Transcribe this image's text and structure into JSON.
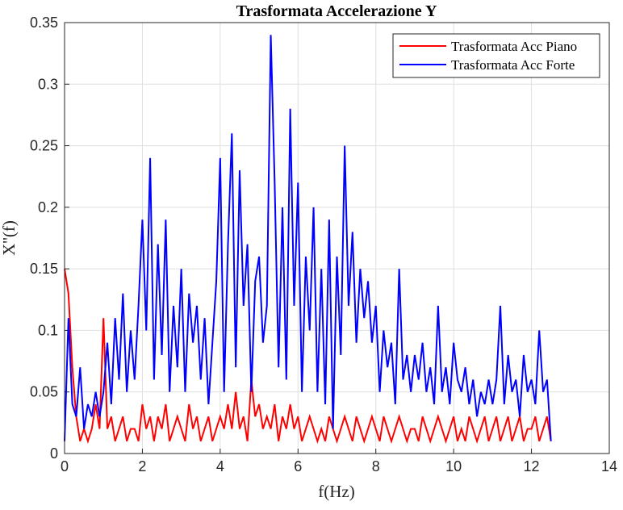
{
  "chart_data": {
    "type": "line",
    "title": "Trasformata Accelerazione Y",
    "x_label": "f(Hz)",
    "y_label": "X''(f)",
    "x": [
      0,
      0.1,
      0.2,
      0.3,
      0.4,
      0.5,
      0.6,
      0.7,
      0.8,
      0.9,
      1,
      1.1,
      1.2,
      1.3,
      1.4,
      1.5,
      1.6,
      1.7,
      1.8,
      1.9,
      2,
      2.1,
      2.2,
      2.3,
      2.4,
      2.5,
      2.6,
      2.7,
      2.8,
      2.9,
      3,
      3.1,
      3.2,
      3.3,
      3.4,
      3.5,
      3.6,
      3.7,
      3.8,
      3.9,
      4,
      4.1,
      4.2,
      4.3,
      4.4,
      4.5,
      4.6,
      4.7,
      4.8,
      4.9,
      5,
      5.1,
      5.2,
      5.3,
      5.4,
      5.5,
      5.6,
      5.7,
      5.8,
      5.9,
      6,
      6.1,
      6.2,
      6.3,
      6.4,
      6.5,
      6.6,
      6.7,
      6.8,
      6.9,
      7,
      7.1,
      7.2,
      7.3,
      7.4,
      7.5,
      7.6,
      7.7,
      7.8,
      7.9,
      8,
      8.1,
      8.2,
      8.3,
      8.4,
      8.5,
      8.6,
      8.7,
      8.8,
      8.9,
      9,
      9.1,
      9.2,
      9.3,
      9.4,
      9.5,
      9.6,
      9.7,
      9.8,
      9.9,
      10,
      10.1,
      10.2,
      10.3,
      10.4,
      10.5,
      10.6,
      10.7,
      10.8,
      10.9,
      11,
      11.1,
      11.2,
      11.3,
      11.4,
      11.5,
      11.6,
      11.7,
      11.8,
      11.9,
      12,
      12.1,
      12.2,
      12.3,
      12.4,
      12.5
    ],
    "series": [
      {
        "name": "Trasformata Acc Piano",
        "color": "#ff0000",
        "values": [
          0.15,
          0.13,
          0.07,
          0.03,
          0.01,
          0.02,
          0.01,
          0.02,
          0.04,
          0.02,
          0.11,
          0.02,
          0.03,
          0.01,
          0.02,
          0.03,
          0.01,
          0.02,
          0.02,
          0.01,
          0.04,
          0.02,
          0.03,
          0.01,
          0.03,
          0.02,
          0.04,
          0.01,
          0.02,
          0.03,
          0.02,
          0.01,
          0.04,
          0.02,
          0.03,
          0.01,
          0.02,
          0.03,
          0.01,
          0.02,
          0.03,
          0.02,
          0.04,
          0.02,
          0.05,
          0.02,
          0.03,
          0.01,
          0.06,
          0.03,
          0.04,
          0.02,
          0.03,
          0.02,
          0.04,
          0.01,
          0.03,
          0.02,
          0.04,
          0.02,
          0.03,
          0.01,
          0.02,
          0.03,
          0.02,
          0.01,
          0.02,
          0.01,
          0.03,
          0.02,
          0.01,
          0.02,
          0.03,
          0.02,
          0.01,
          0.03,
          0.02,
          0.01,
          0.02,
          0.03,
          0.02,
          0.01,
          0.03,
          0.02,
          0.01,
          0.02,
          0.03,
          0.02,
          0.01,
          0.02,
          0.02,
          0.01,
          0.03,
          0.02,
          0.01,
          0.02,
          0.03,
          0.02,
          0.01,
          0.02,
          0.03,
          0.01,
          0.02,
          0.01,
          0.03,
          0.02,
          0.01,
          0.02,
          0.03,
          0.01,
          0.02,
          0.03,
          0.01,
          0.02,
          0.03,
          0.01,
          0.02,
          0.03,
          0.01,
          0.02,
          0.02,
          0.03,
          0.01,
          0.02,
          0.03,
          0.01
        ]
      },
      {
        "name": "Trasformata Acc Forte",
        "color": "#0000ff",
        "values": [
          0.01,
          0.11,
          0.04,
          0.03,
          0.07,
          0.02,
          0.04,
          0.03,
          0.05,
          0.03,
          0.05,
          0.09,
          0.04,
          0.11,
          0.06,
          0.13,
          0.05,
          0.1,
          0.06,
          0.12,
          0.19,
          0.1,
          0.24,
          0.06,
          0.17,
          0.08,
          0.19,
          0.05,
          0.12,
          0.07,
          0.15,
          0.05,
          0.13,
          0.09,
          0.12,
          0.06,
          0.11,
          0.04,
          0.09,
          0.14,
          0.24,
          0.05,
          0.17,
          0.26,
          0.07,
          0.23,
          0.12,
          0.17,
          0.05,
          0.14,
          0.16,
          0.09,
          0.12,
          0.34,
          0.22,
          0.07,
          0.2,
          0.06,
          0.28,
          0.12,
          0.22,
          0.05,
          0.16,
          0.1,
          0.2,
          0.05,
          0.15,
          0.04,
          0.19,
          0.02,
          0.16,
          0.08,
          0.25,
          0.12,
          0.18,
          0.09,
          0.15,
          0.11,
          0.14,
          0.09,
          0.12,
          0.05,
          0.1,
          0.07,
          0.09,
          0.04,
          0.15,
          0.06,
          0.08,
          0.05,
          0.08,
          0.06,
          0.09,
          0.05,
          0.07,
          0.04,
          0.12,
          0.05,
          0.07,
          0.04,
          0.09,
          0.06,
          0.05,
          0.07,
          0.04,
          0.06,
          0.03,
          0.05,
          0.04,
          0.06,
          0.04,
          0.06,
          0.12,
          0.04,
          0.08,
          0.05,
          0.06,
          0.03,
          0.08,
          0.05,
          0.06,
          0.04,
          0.1,
          0.05,
          0.06,
          0.01
        ]
      }
    ],
    "xlim": [
      0,
      14
    ],
    "xticks": [
      0,
      2,
      4,
      6,
      8,
      10,
      12,
      14
    ],
    "ylim": [
      0,
      0.35
    ],
    "yticks": [
      0,
      0.05,
      0.1,
      0.15,
      0.2,
      0.25,
      0.3,
      0.35
    ],
    "grid": true,
    "legend": "top-right"
  }
}
